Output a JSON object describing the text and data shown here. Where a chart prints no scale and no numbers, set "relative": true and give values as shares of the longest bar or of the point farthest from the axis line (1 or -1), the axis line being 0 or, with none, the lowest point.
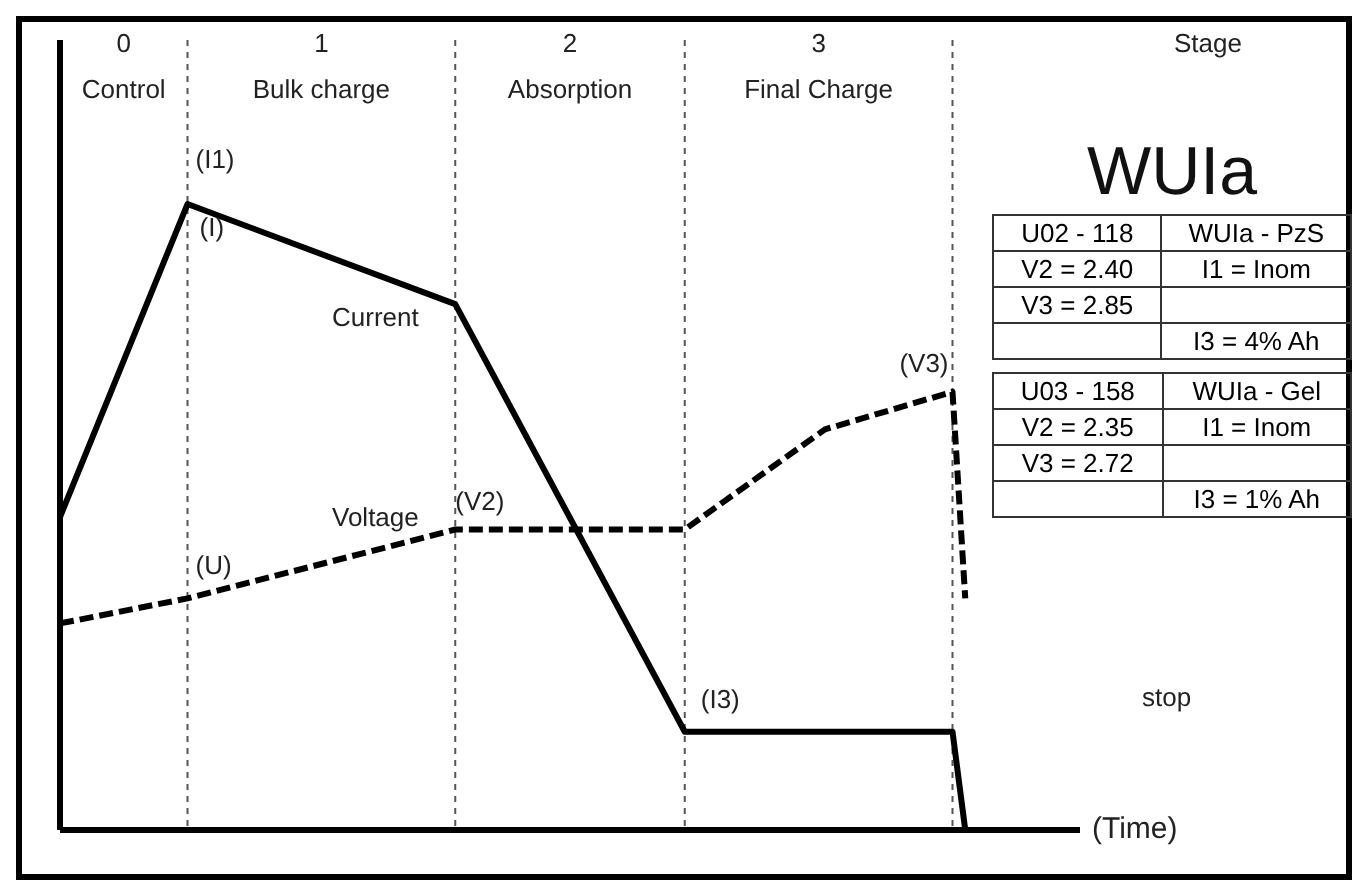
{
  "chart_data": {
    "type": "line",
    "title": "WUIa",
    "xlabel": "(Time)",
    "relative": true,
    "categories": [
      null,
      null,
      null,
      null,
      null,
      null,
      null,
      null,
      null,
      null,
      null,
      null,
      null,
      null,
      null,
      null,
      null,
      null,
      null,
      null,
      null,
      null,
      null,
      null,
      null,
      null,
      null,
      null,
      null,
      null,
      null,
      null,
      null,
      null,
      null,
      null,
      null,
      null,
      null,
      null,
      null,
      null,
      null,
      null,
      null,
      null,
      null,
      null,
      null,
      null,
      null,
      null,
      null,
      null,
      null,
      null,
      null,
      null,
      null,
      null,
      null,
      null,
      null,
      null,
      null,
      null,
      null,
      null,
      null,
      null,
      null,
      null,
      null,
      null,
      null,
      null,
      null,
      null,
      null,
      null
    ],
    "series": [
      {
        "name": "Current",
        "color": "#000000",
        "line_style": "solid",
        "values": [
          0.5,
          null,
          null,
          null,
          null,
          null,
          null,
          null,
          null,
          null,
          1,
          null,
          null,
          null,
          null,
          null,
          null,
          null,
          null,
          null,
          null,
          null,
          null,
          null,
          null,
          null,
          null,
          null,
          null,
          null,
          null,
          0.84,
          null,
          null,
          null,
          null,
          null,
          null,
          null,
          null,
          null,
          null,
          null,
          null,
          null,
          null,
          null,
          null,
          null,
          0.157,
          null,
          null,
          null,
          null,
          null,
          null,
          null,
          null,
          null,
          null,
          null,
          null,
          null,
          null,
          null,
          null,
          null,
          null,
          null,
          null,
          0.157,
          0,
          null,
          null,
          null,
          null,
          null,
          null,
          null,
          null
        ]
      },
      {
        "name": "Voltage",
        "color": "#000000",
        "line_style": "dashed",
        "values": [
          0.33,
          null,
          null,
          null,
          null,
          null,
          null,
          null,
          null,
          null,
          0.37,
          null,
          null,
          null,
          null,
          null,
          null,
          null,
          null,
          null,
          null,
          null,
          null,
          null,
          null,
          null,
          null,
          null,
          null,
          null,
          null,
          0.48,
          null,
          null,
          null,
          null,
          null,
          null,
          null,
          null,
          null,
          null,
          null,
          null,
          null,
          null,
          null,
          null,
          null,
          0.48,
          null,
          null,
          null,
          null,
          null,
          null,
          null,
          null,
          null,
          null,
          0.64,
          null,
          null,
          null,
          null,
          null,
          null,
          null,
          null,
          null,
          0.7,
          0.37,
          null,
          null,
          null,
          null,
          null,
          null,
          null,
          null
        ]
      }
    ],
    "grid": "x",
    "annotations": [
      "Stage",
      "0",
      "Control",
      "1",
      "Bulk charge",
      "2",
      "Absorption",
      "3",
      "Final Charge",
      "U02 - 118",
      "WUIa - PzS",
      "V2 = 2.40",
      "I1 = Inom",
      "V3 = 2.85",
      "I3 = 4% Ah",
      "U03 - 158",
      "WUIa - Gel",
      "V2 = 2.35",
      "I1 = Inom",
      "V3 = 2.72",
      "I3 = 1% Ah",
      "stop",
      "(I1)",
      "(I)",
      "(U)",
      "(V2)",
      "(V3)",
      "(I3)"
    ]
  }
}
